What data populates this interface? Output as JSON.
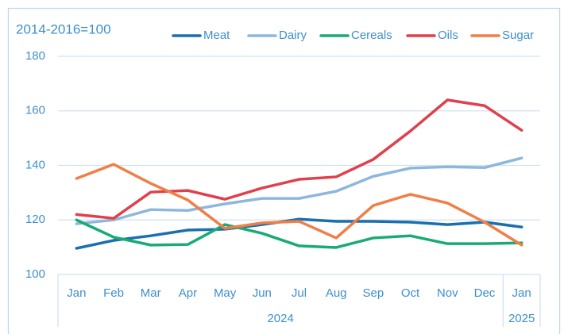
{
  "chart_data": {
    "type": "line",
    "title": "2014-2016=100",
    "categories": [
      "Jan",
      "Feb",
      "Mar",
      "Apr",
      "May",
      "Jun",
      "Jul",
      "Aug",
      "Sep",
      "Oct",
      "Nov",
      "Dec",
      "Jan"
    ],
    "x_groups": [
      {
        "label": "2024",
        "span": 12
      },
      {
        "label": "2025",
        "span": 1
      }
    ],
    "series": [
      {
        "name": "Meat",
        "color": "#1a6faf",
        "values": [
          109.6,
          112.5,
          114.2,
          116.3,
          116.6,
          118.3,
          120.3,
          119.5,
          119.5,
          119.2,
          118.3,
          119.2,
          117.4
        ]
      },
      {
        "name": "Dairy",
        "color": "#8db7dc",
        "values": [
          118.6,
          120,
          123.8,
          123.5,
          125.9,
          127.9,
          127.9,
          130.5,
          136,
          139,
          139.5,
          139.2,
          142.7
        ]
      },
      {
        "name": "Cereals",
        "color": "#1aaa75",
        "values": [
          120,
          113.7,
          110.8,
          111,
          118.3,
          115.1,
          110.5,
          109.9,
          113.4,
          114.2,
          111.3,
          111.3,
          111.6
        ]
      },
      {
        "name": "Oils",
        "color": "#e0404e",
        "values": [
          122,
          120.6,
          130.2,
          130.8,
          127.6,
          131.7,
          134.9,
          135.8,
          142.2,
          152.6,
          164,
          161.9,
          152.9
        ]
      },
      {
        "name": "Sugar",
        "color": "#ef7f47",
        "values": [
          135.2,
          140.4,
          133.4,
          127.3,
          116.9,
          118.9,
          119.5,
          113.4,
          125.3,
          129.4,
          126.2,
          119.2,
          110.8
        ]
      }
    ],
    "ylim": [
      100,
      180
    ],
    "yticks": [
      100,
      120,
      140,
      160,
      180
    ],
    "grid": true,
    "legend": "top"
  }
}
